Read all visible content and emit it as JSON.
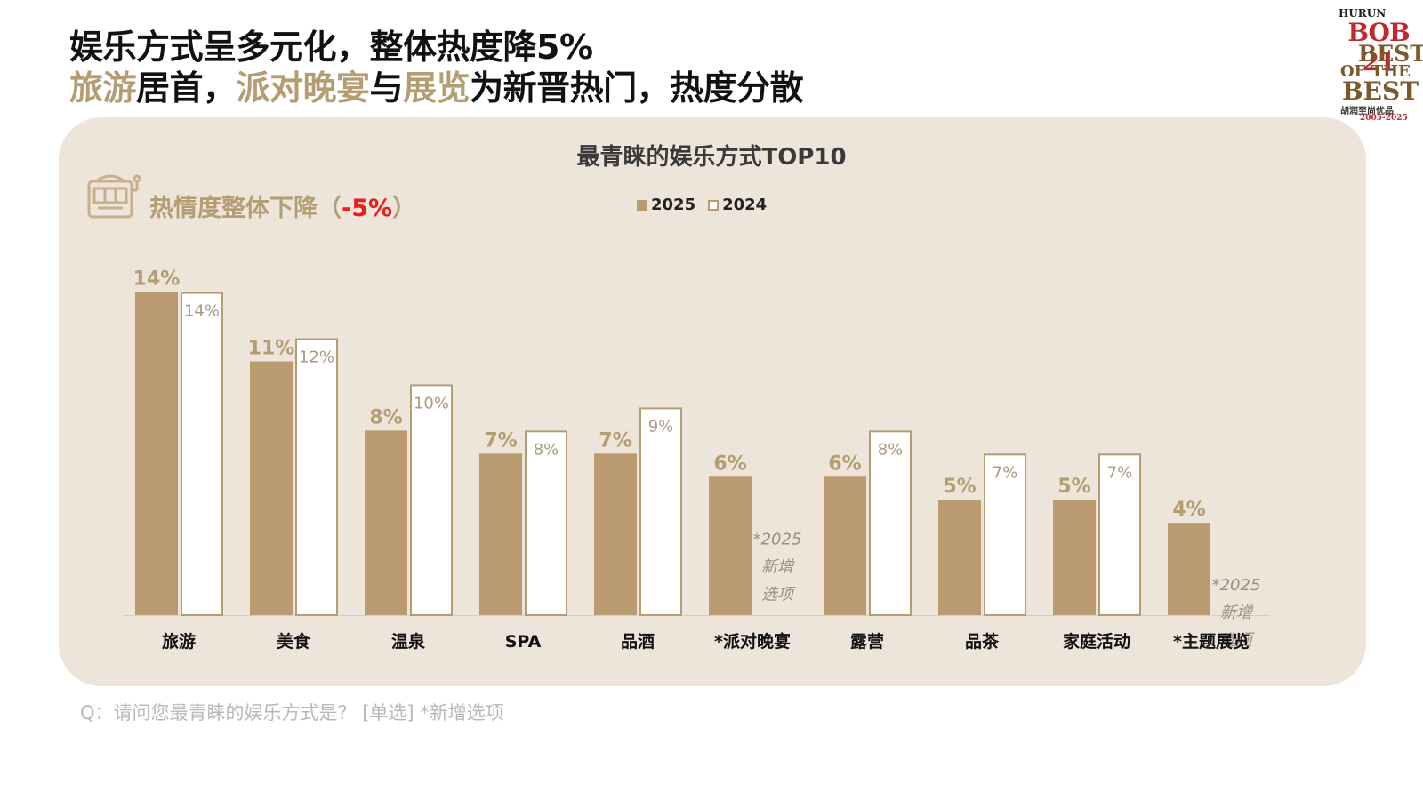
{
  "header": {
    "line1": "娱乐方式呈多元化，整体热度降5%",
    "line2_parts": [
      {
        "text": "旅游",
        "highlight": true
      },
      {
        "text": "居首，",
        "highlight": false
      },
      {
        "text": "派对晚宴",
        "highlight": true
      },
      {
        "text": "与",
        "highlight": false
      },
      {
        "text": "展览",
        "highlight": true
      },
      {
        "text": "为新晋热门，热度分散",
        "highlight": false
      }
    ]
  },
  "logo": {
    "hurun": "HURUN",
    "bob": "BOB 21",
    "best": "BEST",
    "of_the": "OF THE",
    "best2": "BEST",
    "cn": "胡润至尚优品",
    "years": "2005-2025"
  },
  "heat_note": {
    "prefix": "热情度整体下降（",
    "value": "-5%",
    "suffix": "）",
    "icon": "slot-machine-icon"
  },
  "question": "Q：请问您最青睐的娱乐方式是？ [单选] *新增选项",
  "colors": {
    "bar2025": "#b99b6f",
    "bar2024_fill": "#ffffff",
    "bar2024_stroke": "#b49d72",
    "label2025": "#b49d72",
    "label2024": "#aa9a80",
    "panel": "#ede5da",
    "accent_red": "#ee1c1c"
  },
  "chart_data": {
    "type": "bar",
    "title": "最青睐的娱乐方式TOP10",
    "categories": [
      "旅游",
      "美食",
      "温泉",
      "SPA",
      "品酒",
      "*派对晚宴",
      "露营",
      "品茶",
      "家庭活动",
      "*主题展览"
    ],
    "series": [
      {
        "name": "2025",
        "values": [
          14,
          11,
          8,
          7,
          7,
          6,
          6,
          5,
          5,
          4
        ],
        "labels": [
          "14%",
          "11%",
          "8%",
          "7%",
          "7%",
          "6%",
          "6%",
          "5%",
          "5%",
          "4%"
        ]
      },
      {
        "name": "2024",
        "values": [
          14,
          12,
          10,
          8,
          9,
          null,
          8,
          7,
          7,
          null
        ],
        "labels": [
          "14%",
          "12%",
          "10%",
          "8%",
          "9%",
          null,
          "8%",
          "7%",
          "7%",
          null
        ]
      }
    ],
    "new_option_note": [
      "*2025",
      "新增",
      "选项"
    ],
    "ylim": [
      0,
      15
    ],
    "legend_position": "top-center",
    "grid": false
  }
}
